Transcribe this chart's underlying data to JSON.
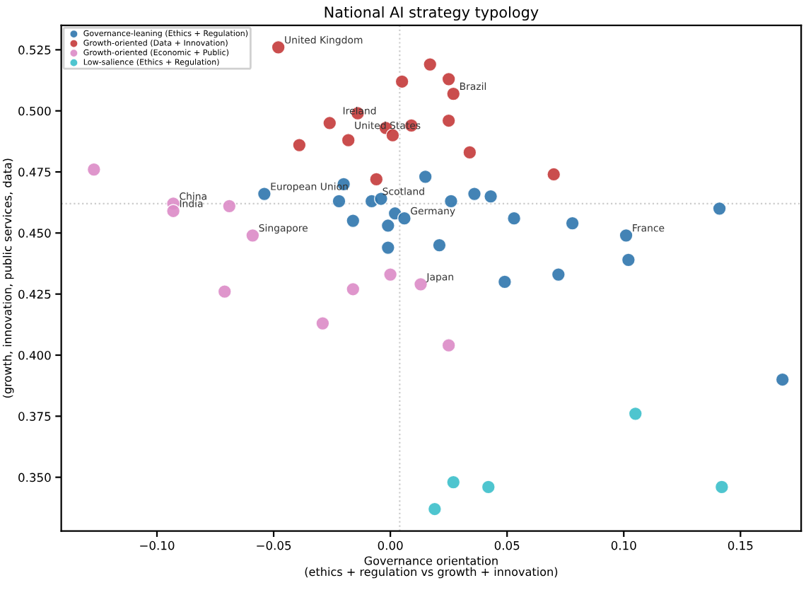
{
  "chart_data": {
    "type": "scatter",
    "title": "National AI strategy typology",
    "xlabel": "Governance orientation\n(ethics + regulation vs growth + innovation)",
    "ylabel": "(growth, innovation, public services, data)",
    "marker": "circle",
    "legend": "top left",
    "grid": false,
    "xlim": [
      -0.141,
      0.176
    ],
    "ylim": [
      0.328,
      0.535
    ],
    "xticks": [
      {
        "value": -0.1,
        "label": "−0.10"
      },
      {
        "value": -0.05,
        "label": "−0.05"
      },
      {
        "value": 0,
        "label": "0.00"
      },
      {
        "value": 0.05,
        "label": "0.05"
      },
      {
        "value": 0.1,
        "label": "0.10"
      },
      {
        "value": 0.15,
        "label": "0.15"
      }
    ],
    "yticks": [
      {
        "value": 0.35,
        "label": "0.350"
      },
      {
        "value": 0.375,
        "label": "0.375"
      },
      {
        "value": 0.4,
        "label": "0.400"
      },
      {
        "value": 0.425,
        "label": "0.425"
      },
      {
        "value": 0.45,
        "label": "0.450"
      },
      {
        "value": 0.475,
        "label": "0.475"
      },
      {
        "value": 0.5,
        "label": "0.500"
      },
      {
        "value": 0.525,
        "label": "0.525"
      }
    ],
    "ref_lines": [
      {
        "axis": "y",
        "value": 0.462,
        "color": "#cccccc",
        "line_style": "dotted"
      },
      {
        "axis": "x",
        "value": 0.004,
        "color": "#cccccc",
        "line_style": "dotted"
      }
    ],
    "series": [
      {
        "name": "Governance-leaning (Ethics + Regulation)",
        "color": "#2f76ad",
        "x": [
          -0.054,
          -0.02,
          -0.022,
          -0.016,
          -0.008,
          -0.004,
          0.002,
          0.006,
          -0.001,
          -0.001,
          0.015,
          0.026,
          0.036,
          0.043,
          0.053,
          0.078,
          0.101,
          0.102,
          0.072,
          0.049,
          0.021,
          0.141,
          0.168
        ],
        "values": [
          0.466,
          0.47,
          0.463,
          0.455,
          0.463,
          0.464,
          0.458,
          0.456,
          0.453,
          0.444,
          0.473,
          0.463,
          0.466,
          0.465,
          0.456,
          0.454,
          0.449,
          0.439,
          0.433,
          0.43,
          0.445,
          0.46,
          0.39
        ]
      },
      {
        "name": "Growth-oriented (Data + Innovation)",
        "color": "#c43a3a",
        "x": [
          -0.048,
          -0.039,
          -0.026,
          -0.014,
          -0.018,
          -0.006,
          -0.002,
          0.001,
          0.005,
          0.017,
          0.025,
          0.027,
          0.025,
          0.009,
          0.034,
          0.07
        ],
        "values": [
          0.526,
          0.486,
          0.495,
          0.499,
          0.488,
          0.472,
          0.493,
          0.49,
          0.512,
          0.519,
          0.513,
          0.507,
          0.496,
          0.494,
          0.483,
          0.474
        ]
      },
      {
        "name": "Growth-oriented (Economic + Public)",
        "color": "#dc8bc6",
        "x": [
          -0.127,
          -0.093,
          -0.093,
          -0.069,
          -0.059,
          -0.071,
          -0.016,
          -0.029,
          0.0,
          0.013,
          0.025
        ],
        "values": [
          0.476,
          0.462,
          0.459,
          0.461,
          0.449,
          0.426,
          0.427,
          0.413,
          0.433,
          0.429,
          0.404
        ]
      },
      {
        "name": "Low-salience (Ethics + Regulation)",
        "color": "#3bbfca",
        "x": [
          0.105,
          0.027,
          0.042,
          0.019,
          0.142
        ],
        "values": [
          0.376,
          0.348,
          0.346,
          0.337,
          0.346
        ]
      }
    ],
    "annotations": [
      {
        "text": "United Kingdom",
        "x": -0.048,
        "y": 0.526
      },
      {
        "text": "Ireland",
        "x": -0.023,
        "y": 0.497
      },
      {
        "text": "United States",
        "x": -0.018,
        "y": 0.491
      },
      {
        "text": "Brazil",
        "x": 0.027,
        "y": 0.507
      },
      {
        "text": "European Union",
        "x": -0.054,
        "y": 0.466
      },
      {
        "text": "Scotland",
        "x": -0.006,
        "y": 0.464
      },
      {
        "text": "Germany",
        "x": 0.006,
        "y": 0.456
      },
      {
        "text": "France",
        "x": 0.101,
        "y": 0.449
      },
      {
        "text": "China",
        "x": -0.093,
        "y": 0.462
      },
      {
        "text": "India",
        "x": -0.093,
        "y": 0.459
      },
      {
        "text": "Singapore",
        "x": -0.059,
        "y": 0.449
      },
      {
        "text": "Japan",
        "x": 0.013,
        "y": 0.429
      }
    ]
  }
}
